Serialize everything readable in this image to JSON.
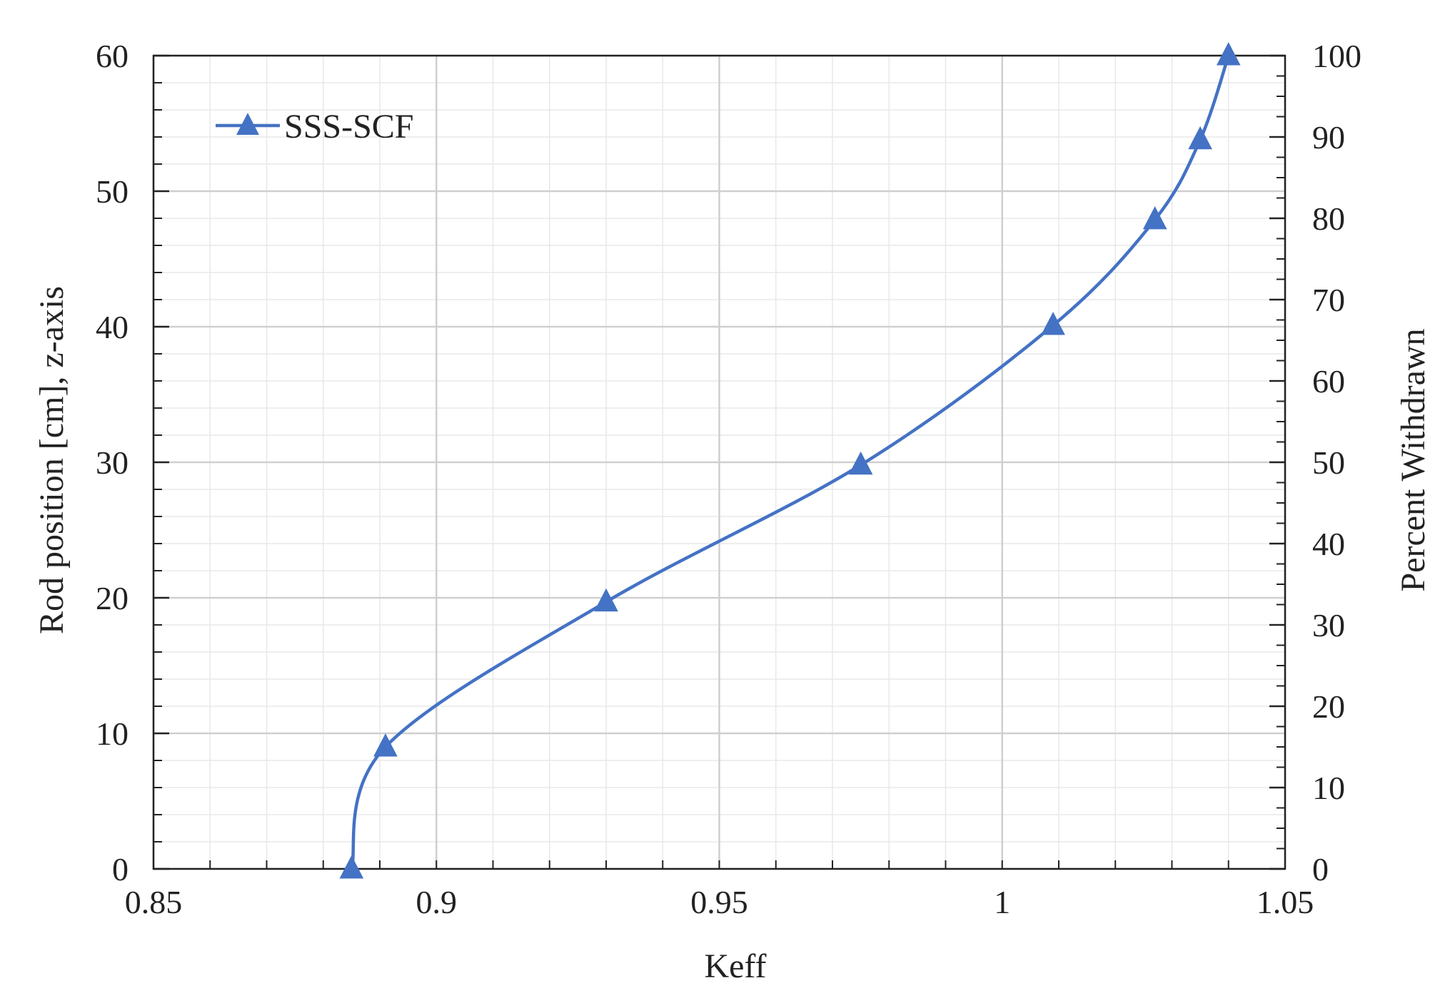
{
  "chart_data": {
    "type": "line",
    "title": "",
    "xlabel": "Keff",
    "ylabel": "Rod position [cm],  z-axis",
    "y2label": "Percent Withdrawn",
    "xlim": [
      0.85,
      1.05
    ],
    "ylim": [
      0,
      60
    ],
    "y2lim": [
      0,
      100
    ],
    "x_ticks": [
      0.85,
      0.9,
      0.95,
      1,
      1.05
    ],
    "x_tick_labels": [
      "0.85",
      "0.9",
      "0.95",
      "1",
      "1.05"
    ],
    "y_ticks": [
      0,
      10,
      20,
      30,
      40,
      50,
      60
    ],
    "y_tick_labels": [
      "0",
      "10",
      "20",
      "30",
      "40",
      "50",
      "60"
    ],
    "y2_ticks": [
      0,
      10,
      20,
      30,
      40,
      50,
      60,
      70,
      80,
      90,
      100
    ],
    "y2_tick_labels": [
      "0",
      "10",
      "20",
      "30",
      "40",
      "50",
      "60",
      "70",
      "80",
      "90",
      "100"
    ],
    "grid": true,
    "smooth": true,
    "legend_position": "top-left",
    "series": [
      {
        "name": "SSS-SCF",
        "color": "#4472C4",
        "marker": "triangle",
        "x": [
          0.885,
          0.891,
          0.93,
          0.975,
          1.009,
          1.027,
          1.035,
          1.04
        ],
        "y": [
          0,
          9,
          19.7,
          29.8,
          40.1,
          47.9,
          53.8,
          60
        ]
      }
    ]
  }
}
